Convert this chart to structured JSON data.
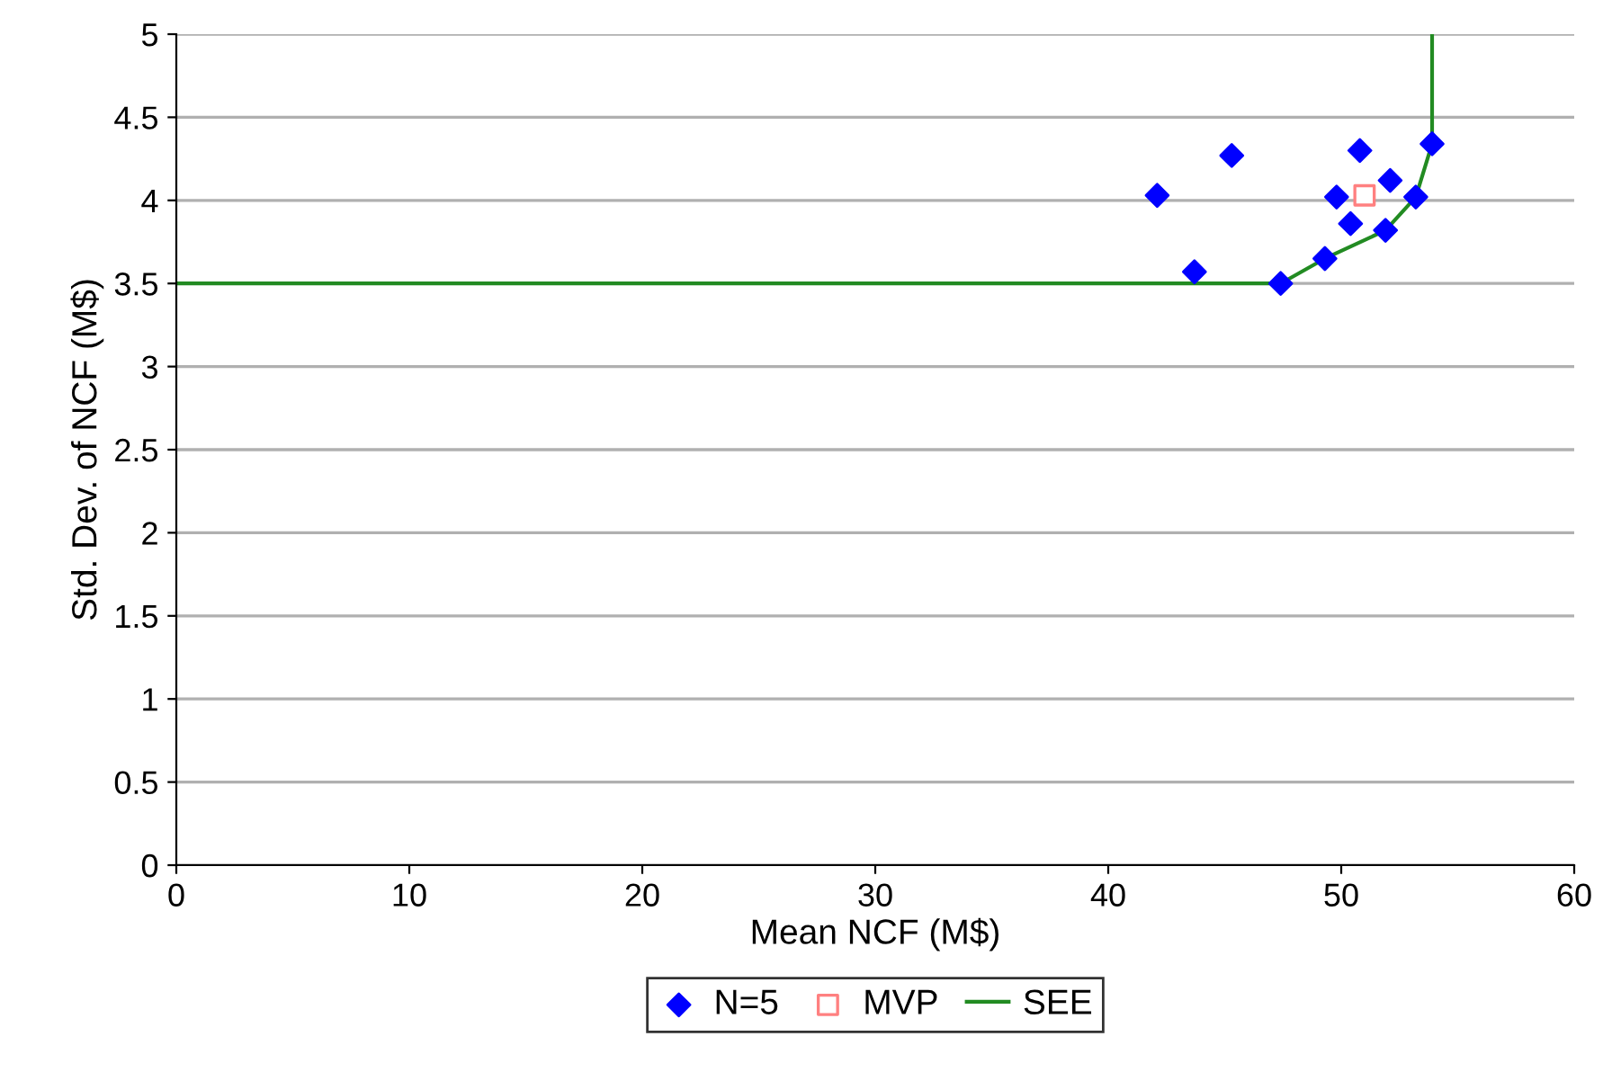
{
  "chart_data": {
    "type": "scatter",
    "xlabel": "Mean NCF (M$)",
    "ylabel": "Std. Dev. of NCF (M$)",
    "xlim": [
      0,
      60
    ],
    "xticks": [
      0,
      10,
      20,
      30,
      40,
      50,
      60
    ],
    "ylim": [
      0,
      5
    ],
    "yticks": [
      0,
      0.5,
      1,
      1.5,
      2,
      2.5,
      3,
      3.5,
      4,
      4.5,
      5
    ],
    "grid": "y",
    "legend": "bottom",
    "series": [
      {
        "name": "N=5",
        "marker": "diamond",
        "color": "#0000ff",
        "x": [
          42.1,
          45.3,
          43.7,
          47.4,
          49.3,
          49.8,
          50.8,
          50.4,
          52.1,
          51.9,
          53.2,
          53.9
        ],
        "values": [
          4.03,
          4.27,
          3.57,
          3.5,
          3.65,
          4.02,
          4.3,
          3.86,
          4.12,
          3.82,
          4.02,
          4.34
        ]
      },
      {
        "name": "MVP",
        "marker": "square",
        "color": "#ff8080",
        "x": [
          51.0
        ],
        "values": [
          4.03
        ]
      },
      {
        "name": "SEE",
        "type": "line",
        "marker": "none",
        "color": "#228b22",
        "x": [
          0,
          47.4,
          49.3,
          51.9,
          53.2,
          53.9,
          53.9
        ],
        "values": [
          3.5,
          3.5,
          3.65,
          3.82,
          4.02,
          4.34,
          5
        ]
      }
    ]
  }
}
